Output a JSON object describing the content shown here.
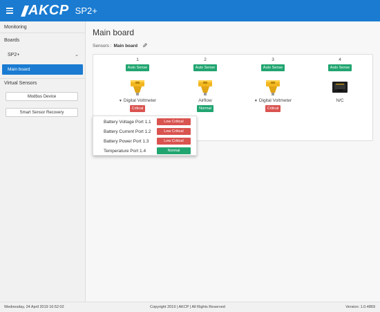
{
  "header": {
    "logo_text": "AKCP",
    "model": "SP2+",
    "bar_color": "#1a7bd1"
  },
  "sidebar": {
    "monitoring": "Monitoring",
    "boards": "Boards",
    "board_name": "SP2+",
    "active_item": "Main board",
    "virtual_sensors": "Virtual Sensors",
    "modbus_button": "Modbus Device",
    "ssr_button": "Smart Sensor Recovery"
  },
  "main": {
    "title": "Main board",
    "breadcrumb_prefix": "Sensors :",
    "breadcrumb_current": "Main board",
    "ports": [
      {
        "number": "1",
        "mode": "Auto Sense",
        "label": "Digital Voltmeter",
        "dropdown": true,
        "status": "Critical",
        "status_color": "red",
        "icon": "yellow-sensor-icon"
      },
      {
        "number": "2",
        "mode": "Auto Sense",
        "label": "Airflow",
        "dropdown": false,
        "status": "Normal",
        "status_color": "green",
        "icon": "yellow-sensor-icon"
      },
      {
        "number": "3",
        "mode": "Auto Sense",
        "label": "Digital Voltmeter",
        "dropdown": true,
        "status": "Critical",
        "status_color": "red",
        "icon": "yellow-sensor-icon"
      },
      {
        "number": "4",
        "mode": "Auto Sense",
        "label": "N/C",
        "dropdown": false,
        "status": "",
        "status_color": "",
        "icon": "empty-port-icon"
      }
    ],
    "dropdown_items": [
      {
        "label": "Battery Voltage Port 1.1",
        "status": "Low Critical",
        "status_color": "red"
      },
      {
        "label": "Battery Current Port 1.2",
        "status": "Low Critical",
        "status_color": "red"
      },
      {
        "label": "Battery Power Port 1.3",
        "status": "Low Critical",
        "status_color": "red"
      },
      {
        "label": "Temperature Port 1.4",
        "status": "Normal",
        "status_color": "green"
      }
    ]
  },
  "footer": {
    "datetime": "Wednesday, 24 April 2019 16:52:02",
    "copyright": "Copyright 2019 | AKCP | All Rights Reserved",
    "version": "Version: 1.0.4869"
  },
  "colors": {
    "accent": "#1a7bd1",
    "ok": "#21a570",
    "critical": "#d9534f",
    "sensor_yellow": "#f2b61f"
  }
}
